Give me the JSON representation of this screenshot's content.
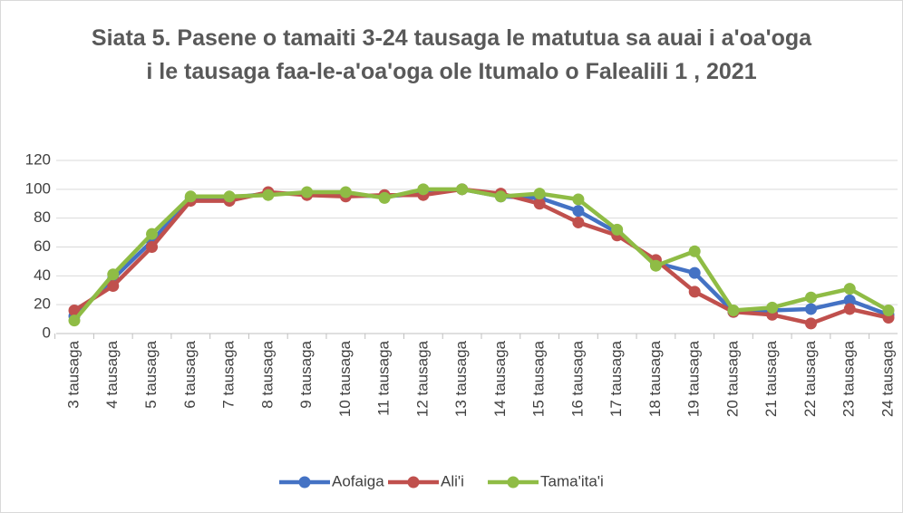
{
  "chart_data": {
    "type": "line",
    "title": "Siata 5. Pasene o tamaiti 3-24 tausaga le matutua sa auai i a'oa'oga i le tausaga faa-le-a'oa'oga ole Itumalo o Falealili 1 , 2021",
    "categories": [
      "3 tausaga",
      "4 tausaga",
      "5 tausaga",
      "6 tausaga",
      "7 tausaga",
      "8 tausaga",
      "9 tausaga",
      "10 tausaga",
      "11 tausaga",
      "12 tausaga",
      "13 tausaga",
      "14 tausaga",
      "15 tausaga",
      "16 tausaga",
      "17 tausaga",
      "18 tausaga",
      "19 tausaga",
      "20 tausaga",
      "21 tausaga",
      "22 tausaga",
      "23 tausaga",
      "24 tausaga"
    ],
    "series": [
      {
        "name": "Aofaiga",
        "color": "#4472c4",
        "values": [
          12,
          38,
          64,
          94,
          94,
          97,
          97,
          96,
          95,
          97,
          100,
          95,
          94,
          85,
          70,
          49,
          42,
          15,
          16,
          17,
          23,
          13
        ]
      },
      {
        "name": "Ali'i",
        "color": "#c0504d",
        "values": [
          16,
          33,
          60,
          92,
          92,
          98,
          96,
          95,
          96,
          96,
          100,
          97,
          90,
          77,
          68,
          51,
          29,
          15,
          13,
          7,
          17,
          11
        ]
      },
      {
        "name": "Tama'ita'i",
        "color": "#8fbc45",
        "values": [
          9,
          41,
          69,
          95,
          95,
          96,
          98,
          98,
          94,
          100,
          100,
          95,
          97,
          93,
          72,
          47,
          57,
          16,
          18,
          25,
          31,
          16
        ]
      }
    ],
    "ylim": [
      0,
      120
    ],
    "yticks": [
      0,
      20,
      40,
      60,
      80,
      100,
      120
    ],
    "grid": true,
    "legend": "bottom"
  }
}
